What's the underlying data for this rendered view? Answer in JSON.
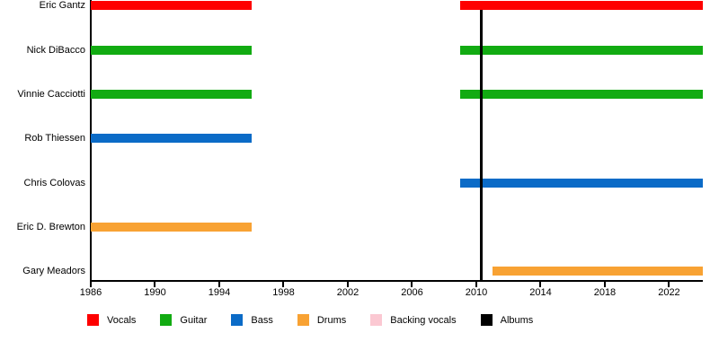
{
  "chart_data": {
    "type": "bar",
    "subtype": "horizontal-timeline-gantt",
    "title": "",
    "xlabel": "",
    "ylabel": "",
    "grid": false,
    "axis": {
      "range": [
        1986,
        2024.1
      ],
      "ticks": [
        1986,
        1990,
        1994,
        1998,
        2002,
        2006,
        2010,
        2014,
        2018,
        2022
      ]
    },
    "colors": {
      "vocals": "#fe0000",
      "guitar": "#12ab12",
      "bass": "#0b6bc7",
      "drums": "#f8a233",
      "backing_vocals": "#fbc8d2",
      "albums": "#000000"
    },
    "members": [
      {
        "name": "Eric Gantz",
        "role": "vocals",
        "intervals": [
          [
            1986,
            1996
          ],
          [
            2009,
            2024.1
          ]
        ]
      },
      {
        "name": "Nick DiBacco",
        "role": "guitar",
        "intervals": [
          [
            1986,
            1996
          ],
          [
            2009,
            2024.1
          ]
        ]
      },
      {
        "name": "Vinnie Cacciotti",
        "role": "guitar",
        "intervals": [
          [
            1986,
            1996
          ],
          [
            2009,
            2024.1
          ]
        ]
      },
      {
        "name": "Rob Thiessen",
        "role": "bass",
        "intervals": [
          [
            1986,
            1996
          ]
        ]
      },
      {
        "name": "Chris Colovas",
        "role": "bass",
        "intervals": [
          [
            2009,
            2024.1
          ]
        ]
      },
      {
        "name": "Eric D. Brewton",
        "role": "drums",
        "intervals": [
          [
            1986,
            1996
          ]
        ]
      },
      {
        "name": "Gary Meadors",
        "role": "drums",
        "intervals": [
          [
            2011,
            2024.1
          ]
        ]
      }
    ],
    "events": [
      {
        "kind": "albums",
        "year": 2010.3
      }
    ],
    "legend": [
      {
        "label": "Vocals",
        "color_key": "vocals"
      },
      {
        "label": "Guitar",
        "color_key": "guitar"
      },
      {
        "label": "Bass",
        "color_key": "bass"
      },
      {
        "label": "Drums",
        "color_key": "drums"
      },
      {
        "label": "Backing vocals",
        "color_key": "backing_vocals"
      },
      {
        "label": "Albums",
        "color_key": "albums"
      }
    ],
    "legend_position": "bottom"
  }
}
